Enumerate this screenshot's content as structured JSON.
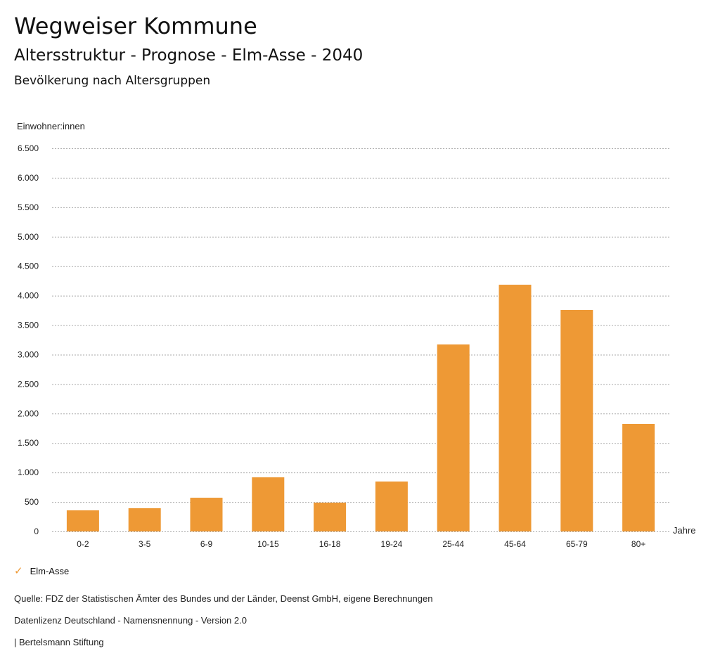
{
  "header": {
    "title": "Wegweiser Kommune",
    "subtitle": "Altersstruktur - Prognose - Elm-Asse - 2040",
    "chart_title": "Bevölkerung nach Altersgruppen"
  },
  "chart_data": {
    "type": "bar",
    "title": "Bevölkerung nach Altersgruppen",
    "xlabel": "Jahre",
    "ylabel": "Einwohner:innen",
    "ylim": [
      0,
      6500
    ],
    "yticks": [
      0,
      500,
      1000,
      1500,
      2000,
      2500,
      3000,
      3500,
      4000,
      4500,
      5000,
      5500,
      6000,
      6500
    ],
    "ytick_labels": [
      "0",
      "500",
      "1.000",
      "1.500",
      "2.000",
      "2.500",
      "3.000",
      "3.500",
      "4.000",
      "4.500",
      "5.000",
      "5.500",
      "6.000",
      "6.500"
    ],
    "categories": [
      "0-2",
      "3-5",
      "6-9",
      "10-15",
      "16-18",
      "19-24",
      "25-44",
      "45-64",
      "65-79",
      "80+"
    ],
    "series": [
      {
        "name": "Elm-Asse",
        "values": [
          358,
          394,
          572,
          918,
          489,
          847,
          3172,
          4186,
          3757,
          1825
        ],
        "color": "#ee9935"
      }
    ],
    "grid": true,
    "legend": "bottom-left"
  },
  "legend": {
    "label": "Elm-Asse",
    "icon": "check-icon"
  },
  "footer": {
    "source": "Quelle: FDZ der Statistischen Ämter des Bundes und der Länder, Deenst GmbH, eigene Berechnungen",
    "license": "Datenlizenz Deutschland - Namensnennung - Version 2.0",
    "credit": "| Bertelsmann Stiftung"
  }
}
